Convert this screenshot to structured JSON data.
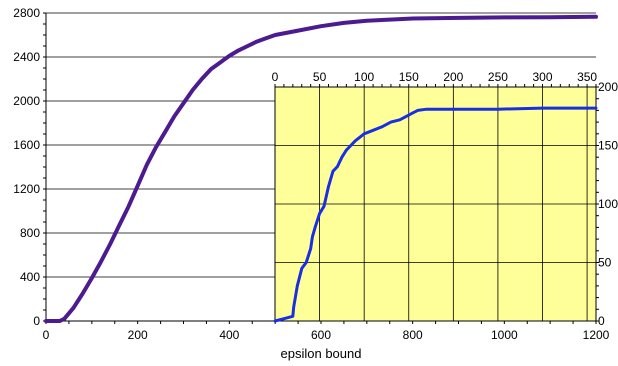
{
  "chart_data": [
    {
      "type": "line",
      "title": "",
      "xlabel": "epsilon bound",
      "ylabel": "",
      "xlim": [
        0,
        1200
      ],
      "ylim": [
        0,
        2800
      ],
      "xticks": [
        "0",
        "200",
        "400",
        "600",
        "800",
        "1000",
        "1200"
      ],
      "yticks": [
        "0",
        "400",
        "800",
        "1200",
        "1600",
        "2000",
        "2400",
        "2800"
      ],
      "grid": "horizontal",
      "series": [
        {
          "color": "#4b1b8f",
          "x": [
            0,
            30,
            40,
            60,
            80,
            100,
            120,
            140,
            160,
            180,
            200,
            220,
            240,
            260,
            280,
            300,
            320,
            340,
            360,
            380,
            400,
            420,
            440,
            460,
            480,
            500,
            550,
            600,
            650,
            700,
            750,
            800,
            900,
            1000,
            1100,
            1200
          ],
          "y": [
            0,
            0,
            20,
            120,
            250,
            390,
            540,
            700,
            870,
            1040,
            1230,
            1420,
            1580,
            1720,
            1860,
            1980,
            2100,
            2200,
            2290,
            2350,
            2410,
            2460,
            2500,
            2540,
            2570,
            2600,
            2640,
            2680,
            2710,
            2730,
            2740,
            2750,
            2755,
            2760,
            2762,
            2765
          ]
        }
      ]
    },
    {
      "type": "line",
      "title": "",
      "xlabel": "",
      "ylabel": "",
      "xlim": [
        0,
        360
      ],
      "ylim": [
        0,
        200
      ],
      "xticks": [
        "0",
        "50",
        "100",
        "150",
        "200",
        "250",
        "300",
        "350"
      ],
      "yticks": [
        "0",
        "50",
        "100",
        "150",
        "200"
      ],
      "grid": "both",
      "background": "#ffff99",
      "series": [
        {
          "color": "#1a2fe0",
          "x": [
            0,
            10,
            20,
            21,
            25,
            30,
            35,
            40,
            42,
            45,
            50,
            55,
            60,
            65,
            70,
            75,
            80,
            85,
            90,
            100,
            110,
            120,
            130,
            140,
            150,
            155,
            160,
            170,
            180,
            200,
            250,
            300,
            360
          ],
          "y": [
            0,
            2,
            4,
            12,
            30,
            45,
            50,
            62,
            72,
            80,
            92,
            98,
            115,
            128,
            132,
            140,
            146,
            150,
            154,
            160,
            163,
            166,
            170,
            172,
            176,
            178,
            180,
            181,
            181,
            181,
            181,
            182,
            182
          ]
        }
      ]
    }
  ]
}
